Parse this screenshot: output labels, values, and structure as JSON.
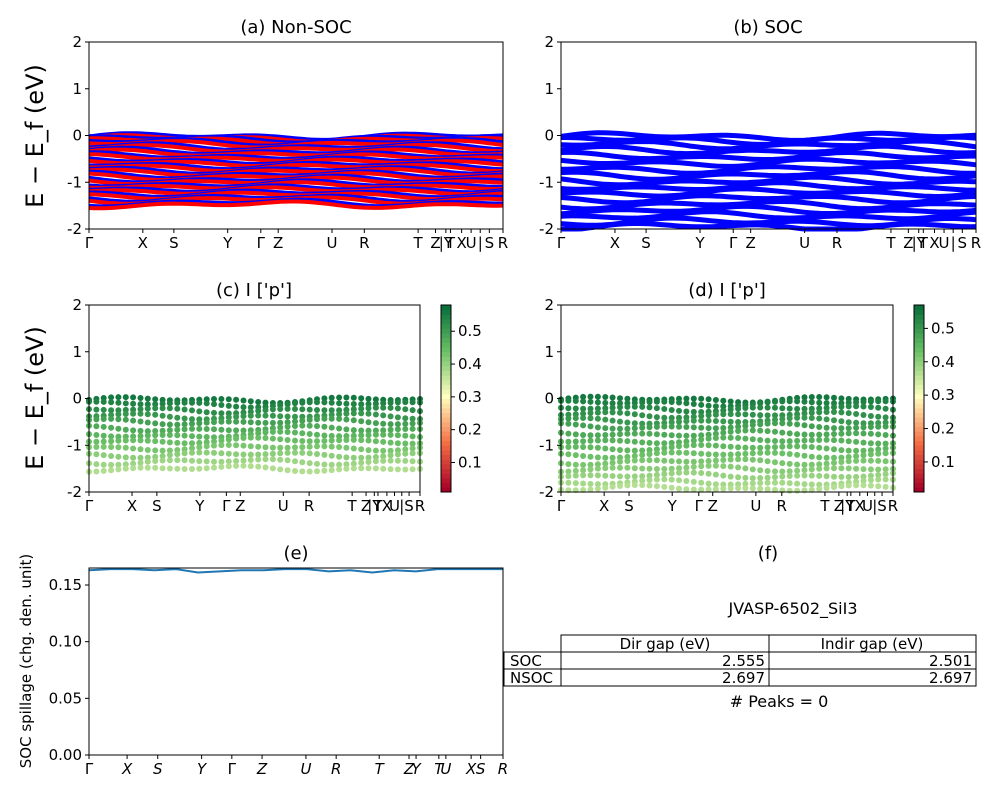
{
  "chart_data": [
    {
      "id": "a",
      "type": "line",
      "title": "(a) Non-SOC",
      "ylabel": "E − E_f (eV)",
      "ylim": [
        -2,
        2
      ],
      "yticks": [
        -2,
        -1,
        0,
        1,
        2
      ],
      "xticks": [
        "Γ",
        "X",
        "S",
        "Y",
        "Γ",
        "Z",
        "U",
        "R",
        "T",
        "Z",
        "|Y",
        "T",
        "X",
        "U",
        "|",
        "S",
        "R"
      ],
      "series": [
        {
          "values": [
            -0.03,
            -0.08,
            -0.15,
            -0.25,
            -0.35,
            -0.45,
            -0.55,
            -0.65,
            -0.75,
            -0.85,
            -0.95,
            -1.05,
            -1.15,
            -1.25,
            -1.35,
            -1.45
          ]
        }
      ],
      "colors": {
        "up": "#0000ff",
        "down": "#ff0000"
      }
    },
    {
      "id": "b",
      "type": "line",
      "title": "(b) SOC",
      "ylim": [
        -2,
        2
      ],
      "yticks": [
        -2,
        -1,
        0,
        1,
        2
      ],
      "xticks": [
        "Γ",
        "X",
        "S",
        "Y",
        "Γ",
        "Z",
        "U",
        "R",
        "T",
        "Z",
        "|Y",
        "T",
        "X",
        "U",
        "|",
        "S",
        "R"
      ],
      "series": [
        {
          "values": [
            -0.02,
            -0.1,
            -0.2,
            -0.32,
            -0.45,
            -0.58,
            -0.72,
            -0.85,
            -0.98,
            -1.1,
            -1.22,
            -1.35,
            -1.48,
            -1.6,
            -1.72,
            -1.85,
            -1.95
          ]
        }
      ],
      "colors": {
        "line": "#0000ff"
      }
    },
    {
      "id": "c",
      "type": "scatter",
      "title": "(c)  I ['p']",
      "ylabel": "E − E_f (eV)",
      "ylim": [
        -2,
        2
      ],
      "yticks": [
        -2,
        -1,
        0,
        1,
        2
      ],
      "xticks": [
        "Γ",
        "X",
        "S",
        "Y",
        "Γ",
        "Z",
        "U",
        "R",
        "T",
        "Z",
        "|Y",
        "T",
        "X",
        "U",
        "|",
        "S",
        "R"
      ],
      "colorbar": {
        "ticks": [
          "0.1",
          "0.2",
          "0.3",
          "0.4",
          "0.5"
        ],
        "min": 0.01,
        "max": 0.58
      },
      "series": [
        {
          "values": [
            -0.03,
            -0.12,
            -0.25,
            -0.38,
            -0.5,
            -0.65,
            -0.78,
            -0.9,
            -1.05,
            -1.2,
            -1.35,
            -1.5
          ]
        }
      ]
    },
    {
      "id": "d",
      "type": "scatter",
      "title": "(d) I ['p']",
      "ylim": [
        -2,
        2
      ],
      "yticks": [
        -2,
        -1,
        0,
        1,
        2
      ],
      "xticks": [
        "Γ",
        "X",
        "S",
        "Y",
        "Γ",
        "Z",
        "U",
        "R",
        "T",
        "Z",
        "|Y",
        "T",
        "X",
        "U",
        "|",
        "S",
        "R"
      ],
      "colorbar": {
        "ticks": [
          "0.1",
          "0.2",
          "0.3",
          "0.4",
          "0.5"
        ],
        "min": 0.01,
        "max": 0.57
      },
      "series": [
        {
          "values": [
            -0.02,
            -0.1,
            -0.22,
            -0.35,
            -0.48,
            -0.6,
            -0.75,
            -0.9,
            -1.05,
            -1.2,
            -1.35,
            -1.5,
            -1.65,
            -1.8,
            -1.92
          ]
        }
      ]
    },
    {
      "id": "e",
      "type": "line",
      "title": "(e)",
      "ylabel": "SOC spillage (chg. den. unit)",
      "ylim": [
        0,
        0.165
      ],
      "yticks": [
        "0.00",
        "0.05",
        "0.10",
        "0.15"
      ],
      "xticks": [
        "Γ",
        "X",
        "S",
        "Y",
        "Γ",
        "Z",
        "U",
        "R",
        "T",
        "Z",
        "Y",
        "T",
        "U",
        "X",
        "S",
        "R"
      ],
      "series": [
        {
          "values": [
            0.163,
            0.164,
            0.164,
            0.163,
            0.164,
            0.161,
            0.162,
            0.163,
            0.163,
            0.164,
            0.164,
            0.162,
            0.163,
            0.161,
            0.163,
            0.162,
            0.164,
            0.164,
            0.164,
            0.164
          ]
        }
      ],
      "colors": {
        "line": "#1f77b4"
      }
    },
    {
      "id": "f",
      "type": "table",
      "title": "(f)",
      "subtitle": "JVASP-6502_SiI3",
      "columns": [
        "Dir gap (eV)",
        "Indir gap (eV)"
      ],
      "rows": [
        {
          "label": "SOC",
          "values": [
            "2.555",
            "2.501"
          ]
        },
        {
          "label": "NSOC",
          "values": [
            "2.697",
            "2.697"
          ]
        }
      ],
      "footer": "# Peaks = 0"
    }
  ]
}
